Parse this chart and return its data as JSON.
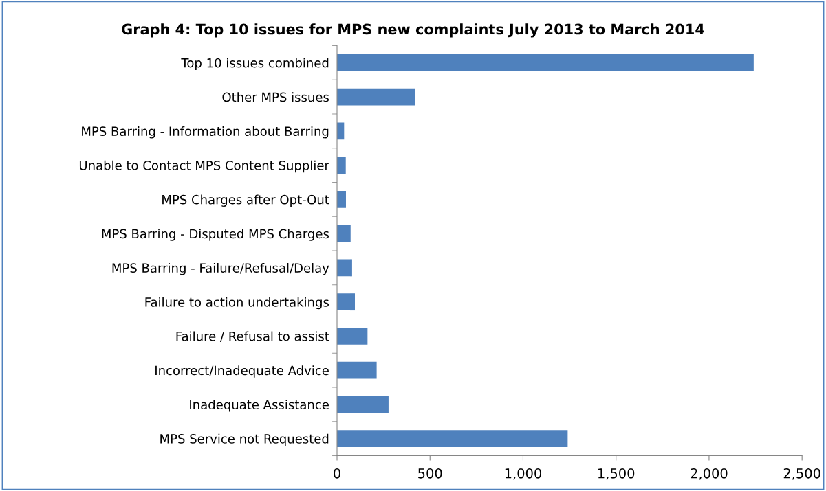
{
  "chart_data": {
    "type": "bar",
    "orientation": "horizontal",
    "title": "Graph 4: Top 10 issues for MPS new complaints July 2013 to March 2014",
    "categories": [
      "Top 10 issues combined",
      "Other MPS issues",
      "MPS Barring - Information about Barring",
      "Unable to Contact MPS Content Supplier",
      "MPS Charges after Opt-Out",
      "MPS Barring - Disputed MPS Charges",
      "MPS Barring - Failure/Refusal/Delay",
      "Failure to action undertakings",
      "Failure / Refusal to assist",
      "Incorrect/Inadequate Advice",
      "Inadequate Assistance",
      "MPS Service not Requested"
    ],
    "values": [
      2240,
      418,
      38,
      47,
      48,
      73,
      81,
      96,
      164,
      213,
      277,
      1240
    ],
    "color": "#4f81bd",
    "xlim": [
      0,
      2500
    ],
    "xticks": [
      0,
      {
        "value": 500,
        "label": "500"
      },
      {
        "value": 1000,
        "label": "1,000"
      },
      {
        "value": 1500,
        "label": "1,500"
      },
      {
        "value": 2000,
        "label": "2,000"
      },
      {
        "value": 2500,
        "label": "2,500"
      }
    ],
    "grid": false,
    "legend": false
  }
}
